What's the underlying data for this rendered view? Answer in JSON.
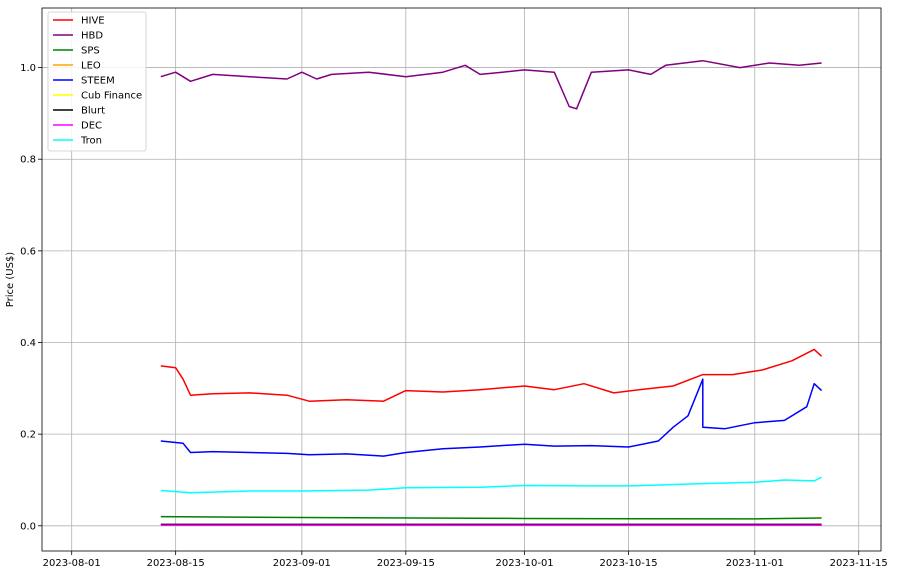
{
  "chart_data": {
    "type": "line",
    "title": "",
    "xlabel": "",
    "ylabel": "Price (US$)",
    "xlim": [
      "2023-07-28",
      "2023-11-18"
    ],
    "ylim": [
      -0.055,
      1.13
    ],
    "grid": true,
    "legend_position": "top-left",
    "x_ticks": [
      "2023-08-01",
      "2023-08-15",
      "2023-09-01",
      "2023-09-15",
      "2023-10-01",
      "2023-10-15",
      "2023-11-01",
      "2023-11-15"
    ],
    "y_ticks": [
      0.0,
      0.2,
      0.4,
      0.6,
      0.8,
      1.0
    ],
    "y_tick_labels": [
      "0.0",
      "0.2",
      "0.4",
      "0.6",
      "0.8",
      "1.0"
    ],
    "series": [
      {
        "name": "HIVE",
        "color": "#ff0000",
        "x": [
          "2023-08-13",
          "2023-08-15",
          "2023-08-16",
          "2023-08-17",
          "2023-08-20",
          "2023-08-25",
          "2023-08-30",
          "2023-09-02",
          "2023-09-07",
          "2023-09-12",
          "2023-09-15",
          "2023-09-20",
          "2023-09-25",
          "2023-10-01",
          "2023-10-05",
          "2023-10-09",
          "2023-10-13",
          "2023-10-17",
          "2023-10-21",
          "2023-10-25",
          "2023-10-29",
          "2023-11-02",
          "2023-11-06",
          "2023-11-09",
          "2023-11-10"
        ],
        "values": [
          0.349,
          0.345,
          0.32,
          0.285,
          0.288,
          0.29,
          0.285,
          0.272,
          0.275,
          0.272,
          0.295,
          0.292,
          0.297,
          0.305,
          0.297,
          0.31,
          0.29,
          0.298,
          0.305,
          0.33,
          0.33,
          0.34,
          0.36,
          0.385,
          0.37
        ]
      },
      {
        "name": "HBD",
        "color": "#800080",
        "x": [
          "2023-08-13",
          "2023-08-15",
          "2023-08-17",
          "2023-08-20",
          "2023-08-25",
          "2023-08-30",
          "2023-09-01",
          "2023-09-03",
          "2023-09-05",
          "2023-09-10",
          "2023-09-15",
          "2023-09-20",
          "2023-09-23",
          "2023-09-25",
          "2023-09-28",
          "2023-10-01",
          "2023-10-05",
          "2023-10-07",
          "2023-10-08",
          "2023-10-10",
          "2023-10-15",
          "2023-10-18",
          "2023-10-20",
          "2023-10-25",
          "2023-10-30",
          "2023-11-03",
          "2023-11-07",
          "2023-11-10"
        ],
        "values": [
          0.98,
          0.99,
          0.97,
          0.985,
          0.98,
          0.975,
          0.99,
          0.975,
          0.985,
          0.99,
          0.98,
          0.99,
          1.005,
          0.985,
          0.99,
          0.995,
          0.99,
          0.915,
          0.91,
          0.99,
          0.995,
          0.985,
          1.005,
          1.015,
          1.0,
          1.01,
          1.005,
          1.01
        ]
      },
      {
        "name": "SPS",
        "color": "#008000",
        "x": [
          "2023-08-13",
          "2023-09-01",
          "2023-10-01",
          "2023-11-01",
          "2023-11-10"
        ],
        "values": [
          0.02,
          0.018,
          0.016,
          0.015,
          0.017
        ]
      },
      {
        "name": "LEO",
        "color": "#ffa500",
        "x": [],
        "values": []
      },
      {
        "name": "STEEM",
        "color": "#0000ff",
        "x": [
          "2023-08-13",
          "2023-08-16",
          "2023-08-17",
          "2023-08-20",
          "2023-08-25",
          "2023-08-30",
          "2023-09-02",
          "2023-09-07",
          "2023-09-12",
          "2023-09-15",
          "2023-09-20",
          "2023-09-25",
          "2023-10-01",
          "2023-10-05",
          "2023-10-10",
          "2023-10-15",
          "2023-10-19",
          "2023-10-21",
          "2023-10-23",
          "2023-10-25",
          "2023-10-25",
          "2023-10-28",
          "2023-11-01",
          "2023-11-05",
          "2023-11-08",
          "2023-11-09",
          "2023-11-10"
        ],
        "values": [
          0.185,
          0.18,
          0.16,
          0.162,
          0.16,
          0.158,
          0.155,
          0.157,
          0.152,
          0.16,
          0.168,
          0.172,
          0.178,
          0.174,
          0.175,
          0.172,
          0.185,
          0.215,
          0.24,
          0.32,
          0.215,
          0.212,
          0.225,
          0.23,
          0.26,
          0.31,
          0.295
        ]
      },
      {
        "name": "Cub Finance",
        "color": "#ffff00",
        "x": [],
        "values": []
      },
      {
        "name": "Blurt",
        "color": "#000000",
        "x": [
          "2023-08-13",
          "2023-11-10"
        ],
        "values": [
          0.003,
          0.003
        ]
      },
      {
        "name": "DEC",
        "color": "#ff00ff",
        "x": [
          "2023-08-13",
          "2023-11-10"
        ],
        "values": [
          0.001,
          0.001
        ]
      },
      {
        "name": "Tron",
        "color": "#00ffff",
        "x": [
          "2023-08-13",
          "2023-08-17",
          "2023-08-25",
          "2023-09-01",
          "2023-09-10",
          "2023-09-15",
          "2023-09-25",
          "2023-10-01",
          "2023-10-10",
          "2023-10-15",
          "2023-10-25",
          "2023-11-01",
          "2023-11-05",
          "2023-11-09",
          "2023-11-10"
        ],
        "values": [
          0.077,
          0.072,
          0.076,
          0.076,
          0.078,
          0.083,
          0.084,
          0.088,
          0.087,
          0.087,
          0.092,
          0.095,
          0.1,
          0.098,
          0.106
        ]
      }
    ]
  }
}
